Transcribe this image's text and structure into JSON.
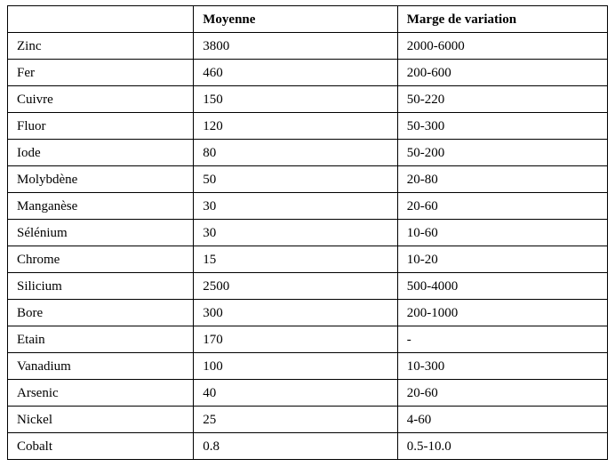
{
  "table": {
    "columns": [
      "",
      "Moyenne",
      "Marge de variation"
    ],
    "rows": [
      [
        "Zinc",
        "3800",
        "2000-6000"
      ],
      [
        "Fer",
        "460",
        "200-600"
      ],
      [
        "Cuivre",
        "150",
        "50-220"
      ],
      [
        "Fluor",
        "120",
        "50-300"
      ],
      [
        "Iode",
        "80",
        "50-200"
      ],
      [
        "Molybdène",
        "50",
        "20-80"
      ],
      [
        "Manganèse",
        "30",
        "20-60"
      ],
      [
        "Sélénium",
        "30",
        "10-60"
      ],
      [
        "Chrome",
        "15",
        "10-20"
      ],
      [
        "Silicium",
        "2500",
        "500-4000"
      ],
      [
        "Bore",
        "300",
        "200-1000"
      ],
      [
        "Etain",
        "170",
        "-"
      ],
      [
        "Vanadium",
        "100",
        "10-300"
      ],
      [
        "Arsenic",
        "40",
        "20-60"
      ],
      [
        "Nickel",
        "25",
        "4-60"
      ],
      [
        "Cobalt",
        "0.8",
        "0.5-10.0"
      ]
    ]
  }
}
